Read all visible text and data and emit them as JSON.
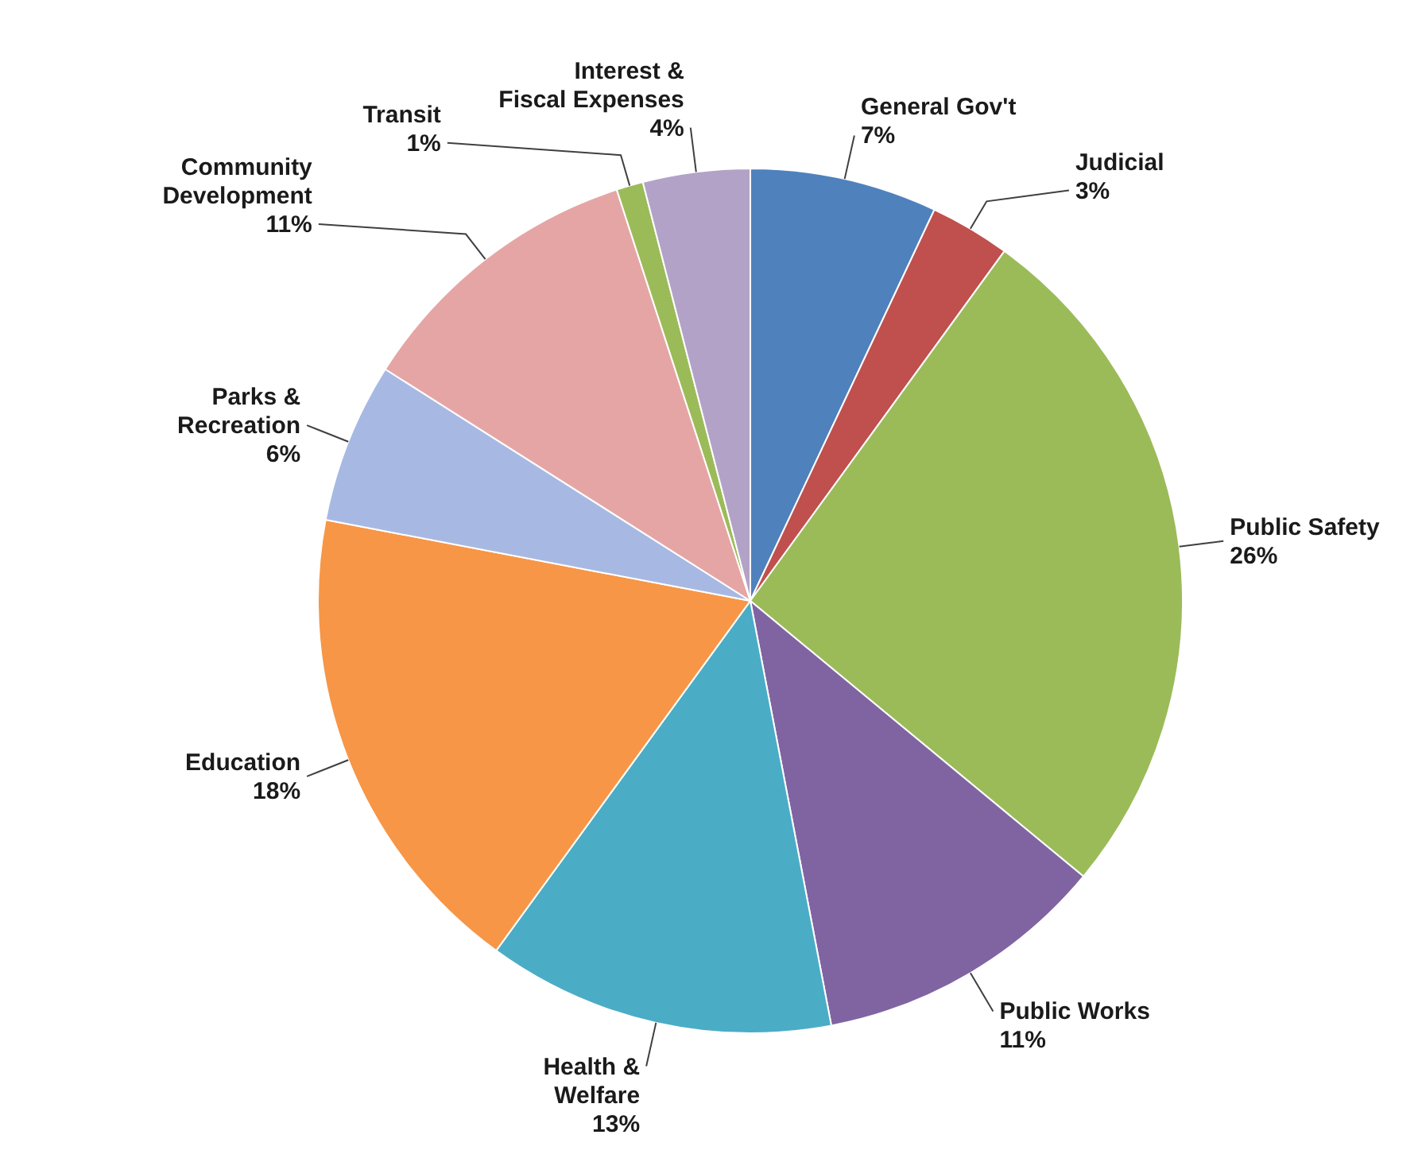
{
  "chart_data": {
    "type": "pie",
    "categories": [
      "General Gov't",
      "Judicial",
      "Public Safety",
      "Public Works",
      "Health & Welfare",
      "Education",
      "Parks & Recreation",
      "Community Development",
      "Transit",
      "Interest & Fiscal Expenses"
    ],
    "values": [
      7,
      3,
      26,
      11,
      13,
      18,
      6,
      11,
      1,
      4
    ],
    "value_labels": [
      "7%",
      "3%",
      "26%",
      "11%",
      "13%",
      "18%",
      "6%",
      "11%",
      "1%",
      "4%"
    ],
    "colors": [
      "#4f81bd",
      "#c0504d",
      "#9bbb59",
      "#8064a2",
      "#4bacc6",
      "#f79646",
      "#a7b9e3",
      "#e6a5a5",
      "#9bbb59",
      "#b3a2c7"
    ]
  }
}
